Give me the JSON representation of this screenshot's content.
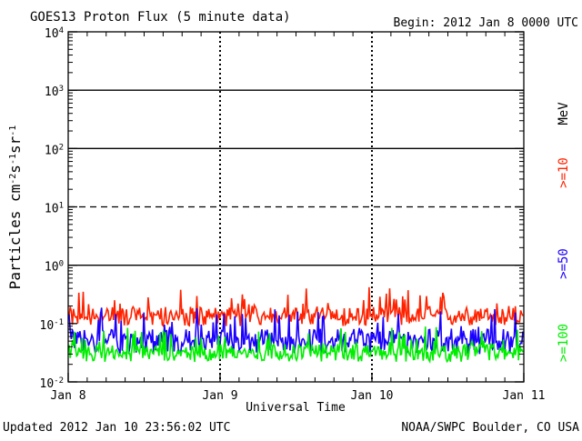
{
  "chart_data": {
    "type": "line",
    "title": "GOES13 Proton Flux (5 minute data)",
    "begin_label": "Begin: 2012 Jan 8 0000 UTC",
    "ylabel": "Particles cm⁻²s⁻¹sr⁻¹",
    "xlabel": "Universal Time",
    "y_scale": "log",
    "ylim": [
      0.01,
      10000
    ],
    "y_ticks": [
      {
        "value": 0.01,
        "base": "10",
        "exp": "-2"
      },
      {
        "value": 0.1,
        "base": "10",
        "exp": "-1"
      },
      {
        "value": 1,
        "base": "10",
        "exp": "0"
      },
      {
        "value": 10,
        "base": "10",
        "exp": "1"
      },
      {
        "value": 100,
        "base": "10",
        "exp": "2"
      },
      {
        "value": 1000,
        "base": "10",
        "exp": "3"
      },
      {
        "value": 10000,
        "base": "10",
        "exp": "4"
      }
    ],
    "x_ticks": [
      "Jan 8",
      "Jan 9",
      "Jan 10",
      "Jan 11"
    ],
    "xlim": [
      "2012-01-08T00:00",
      "2012-01-11T00:00"
    ],
    "threshold_lines": [
      {
        "value": 1,
        "style": "solid"
      },
      {
        "value": 10,
        "style": "dashed"
      },
      {
        "value": 100,
        "style": "solid"
      },
      {
        "value": 1000,
        "style": "solid"
      }
    ],
    "series": [
      {
        "name": ">=10",
        "color": "#ff2200",
        "typical": 0.15,
        "min": 0.09,
        "max": 0.42
      },
      {
        "name": ">=50",
        "color": "#1a00ff",
        "typical": 0.06,
        "min": 0.03,
        "max": 0.2
      },
      {
        "name": ">=100",
        "color": "#00ee00",
        "typical": 0.035,
        "min": 0.022,
        "max": 0.09
      }
    ],
    "unit_label": "MeV",
    "grid": true
  },
  "footer": {
    "updated": "Updated 2012 Jan 10 23:56:02 UTC",
    "source": "NOAA/SWPC Boulder, CO USA"
  }
}
